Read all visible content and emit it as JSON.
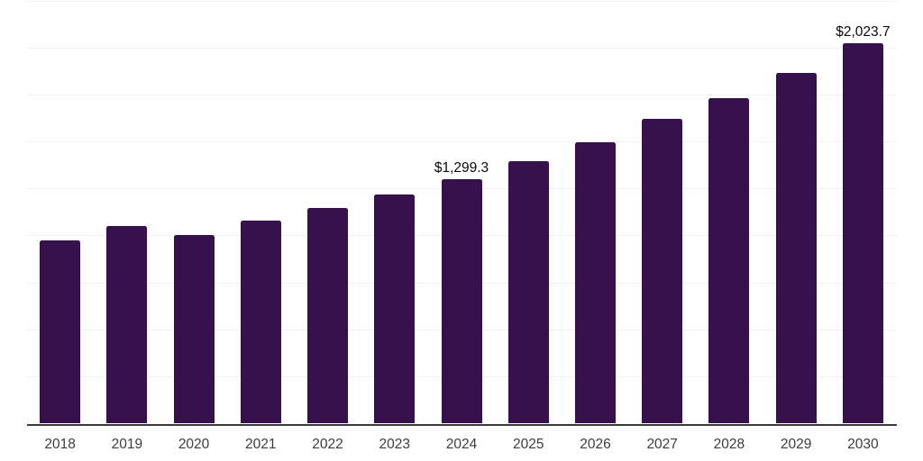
{
  "chart_data": {
    "type": "bar",
    "title": "",
    "xlabel": "",
    "ylabel": "",
    "categories": [
      "2018",
      "2019",
      "2020",
      "2021",
      "2022",
      "2023",
      "2024",
      "2025",
      "2026",
      "2027",
      "2028",
      "2029",
      "2030"
    ],
    "values": [
      977,
      1051,
      1004,
      1080,
      1146,
      1219,
      1299.3,
      1395,
      1499,
      1621,
      1733,
      1865,
      2023.7
    ],
    "data_labels": [
      {
        "category": "2024",
        "text": "$1,299.3"
      },
      {
        "category": "2030",
        "text": "$2,023.7"
      }
    ],
    "ylim": [
      0,
      2250
    ],
    "gridline_step": 250,
    "y_tick_labels_visible": false,
    "x_tick_labels_visible": true,
    "grid": "horizontal-only",
    "legend": "none",
    "bar_color": "#36114D"
  },
  "style": {
    "background": "#ffffff",
    "gridline_color": "#f1f0f2",
    "axis_line_color": "#3a3a3a",
    "x_label_color": "#3c3c3c",
    "data_label_color": "#0b0b0b"
  }
}
